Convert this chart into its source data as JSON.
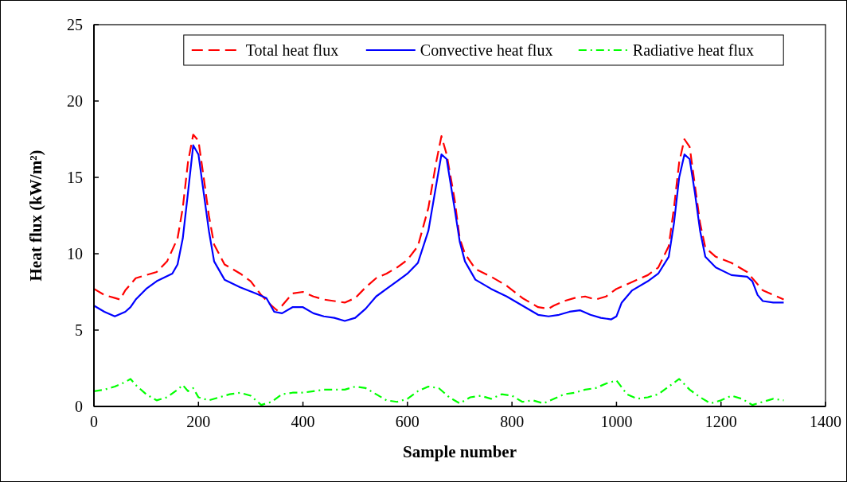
{
  "chart_data": {
    "type": "line",
    "xlabel": "Sample number",
    "ylabel": "Heat flux (kW/m²)",
    "xlim": [
      0,
      1400
    ],
    "xticks": [
      0,
      200,
      400,
      600,
      800,
      1000,
      1200,
      1400
    ],
    "ylim": [
      0,
      25
    ],
    "yticks": [
      0,
      5,
      10,
      15,
      20,
      25
    ],
    "grid": false,
    "legend": "top",
    "marker": "none",
    "series": [
      {
        "name": "Total heat flux",
        "color": "#ff0000",
        "line_style": "dashed",
        "x": [
          0,
          20,
          40,
          50,
          60,
          80,
          100,
          120,
          140,
          160,
          170,
          180,
          190,
          200,
          210,
          220,
          230,
          250,
          280,
          300,
          320,
          340,
          350,
          360,
          380,
          400,
          420,
          440,
          460,
          480,
          500,
          520,
          540,
          560,
          580,
          600,
          620,
          640,
          655,
          665,
          675,
          690,
          700,
          710,
          730,
          760,
          790,
          820,
          850,
          870,
          880,
          900,
          920,
          940,
          960,
          980,
          1000,
          1020,
          1040,
          1060,
          1080,
          1100,
          1110,
          1120,
          1130,
          1140,
          1150,
          1160,
          1170,
          1190,
          1220,
          1250,
          1280,
          1300,
          1320
        ],
        "values": [
          7.7,
          7.3,
          7.1,
          7.0,
          7.6,
          8.4,
          8.6,
          8.8,
          9.5,
          11,
          13,
          16,
          17.8,
          17.4,
          15,
          12.5,
          10.6,
          9.3,
          8.7,
          8.2,
          7.3,
          6.6,
          6.3,
          6.6,
          7.4,
          7.5,
          7.2,
          7.0,
          6.9,
          6.8,
          7.1,
          7.8,
          8.4,
          8.7,
          9.1,
          9.6,
          10.5,
          13,
          16,
          17.7,
          16.5,
          13.6,
          11,
          10.0,
          9.0,
          8.5,
          7.9,
          7.1,
          6.5,
          6.4,
          6.6,
          6.9,
          7.1,
          7.2,
          7.0,
          7.2,
          7.7,
          8.0,
          8.3,
          8.6,
          9.1,
          10.5,
          13,
          16,
          17.5,
          17,
          14.5,
          12,
          10.4,
          9.8,
          9.4,
          8.8,
          7.6,
          7.3,
          7.0
        ]
      },
      {
        "name": "Convective heat flux",
        "color": "#0000ff",
        "line_style": "solid",
        "x": [
          0,
          20,
          40,
          60,
          70,
          80,
          100,
          120,
          150,
          160,
          170,
          180,
          190,
          200,
          210,
          220,
          230,
          250,
          280,
          310,
          330,
          345,
          360,
          380,
          400,
          420,
          440,
          460,
          480,
          500,
          520,
          540,
          560,
          580,
          600,
          620,
          640,
          655,
          665,
          675,
          690,
          700,
          710,
          730,
          760,
          790,
          820,
          850,
          870,
          890,
          910,
          930,
          950,
          970,
          990,
          1000,
          1010,
          1030,
          1060,
          1080,
          1100,
          1110,
          1120,
          1130,
          1140,
          1150,
          1160,
          1170,
          1190,
          1220,
          1250,
          1260,
          1270,
          1280,
          1300,
          1320
        ],
        "values": [
          6.6,
          6.2,
          5.9,
          6.2,
          6.5,
          7.0,
          7.7,
          8.2,
          8.7,
          9.3,
          11,
          14,
          17.1,
          16.5,
          14,
          11.5,
          9.5,
          8.3,
          7.8,
          7.4,
          7.1,
          6.2,
          6.1,
          6.5,
          6.5,
          6.1,
          5.9,
          5.8,
          5.6,
          5.8,
          6.4,
          7.2,
          7.7,
          8.2,
          8.7,
          9.4,
          11.5,
          14.5,
          16.5,
          16.2,
          13,
          10.8,
          9.5,
          8.3,
          7.7,
          7.2,
          6.6,
          6.0,
          5.9,
          6.0,
          6.2,
          6.3,
          6.0,
          5.8,
          5.7,
          5.9,
          6.8,
          7.6,
          8.2,
          8.7,
          9.8,
          12,
          15,
          16.5,
          16.2,
          14,
          11.5,
          9.8,
          9.1,
          8.6,
          8.5,
          8.2,
          7.3,
          6.9,
          6.8,
          6.8
        ]
      },
      {
        "name": "Radiative heat flux",
        "color": "#00ff00",
        "line_style": "dotted",
        "x": [
          0,
          20,
          40,
          60,
          70,
          80,
          100,
          120,
          140,
          160,
          170,
          180,
          190,
          200,
          220,
          240,
          260,
          280,
          300,
          320,
          340,
          360,
          380,
          400,
          420,
          440,
          460,
          480,
          500,
          520,
          540,
          560,
          580,
          600,
          620,
          640,
          660,
          680,
          700,
          720,
          740,
          760,
          780,
          800,
          820,
          840,
          860,
          880,
          900,
          920,
          940,
          960,
          980,
          1000,
          1020,
          1040,
          1060,
          1080,
          1100,
          1120,
          1140,
          1160,
          1180,
          1200,
          1220,
          1240,
          1260,
          1280,
          1300,
          1320
        ],
        "values": [
          1.0,
          1.1,
          1.3,
          1.6,
          1.8,
          1.4,
          0.8,
          0.4,
          0.6,
          1.1,
          1.4,
          1.0,
          1.2,
          0.6,
          0.4,
          0.6,
          0.8,
          0.9,
          0.7,
          0.1,
          0.3,
          0.8,
          0.9,
          0.9,
          1.0,
          1.1,
          1.1,
          1.1,
          1.3,
          1.2,
          0.8,
          0.4,
          0.3,
          0.5,
          1.0,
          1.3,
          1.2,
          0.6,
          0.2,
          0.6,
          0.7,
          0.5,
          0.8,
          0.7,
          0.3,
          0.4,
          0.2,
          0.5,
          0.8,
          0.9,
          1.1,
          1.2,
          1.5,
          1.7,
          0.8,
          0.5,
          0.6,
          0.8,
          1.3,
          1.8,
          1.1,
          0.6,
          0.2,
          0.4,
          0.7,
          0.5,
          0.1,
          0.3,
          0.5,
          0.4
        ]
      }
    ]
  }
}
